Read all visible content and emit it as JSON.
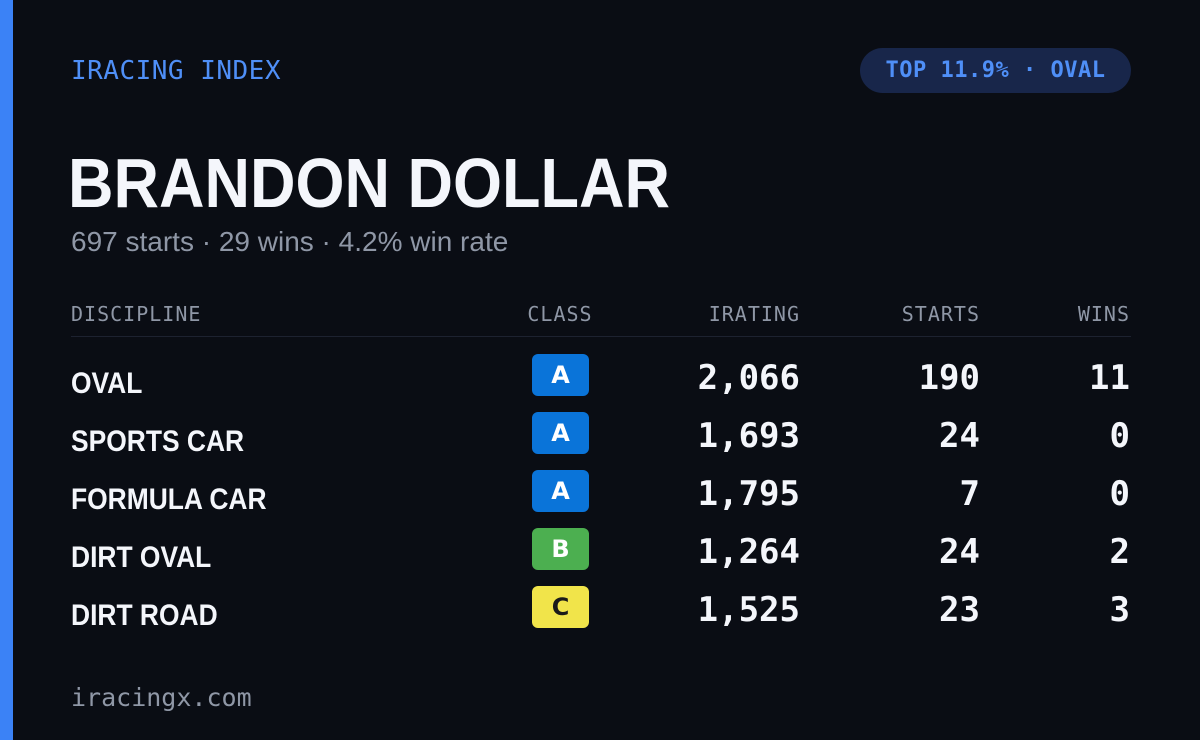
{
  "brand": "IRACING INDEX",
  "badge": "TOP 11.9% · OVAL",
  "driver": {
    "name": "BRANDON DOLLAR",
    "summary": "697 starts · 29 wins · 4.2% win rate"
  },
  "table": {
    "headers": {
      "discipline": "DISCIPLINE",
      "class": "CLASS",
      "irating": "IRATING",
      "starts": "STARTS",
      "wins": "WINS"
    },
    "rows": [
      {
        "discipline": "OVAL",
        "class": "A",
        "irating": "2,066",
        "starts": "190",
        "wins": "11"
      },
      {
        "discipline": "SPORTS CAR",
        "class": "A",
        "irating": "1,693",
        "starts": "24",
        "wins": "0"
      },
      {
        "discipline": "FORMULA CAR",
        "class": "A",
        "irating": "1,795",
        "starts": "7",
        "wins": "0"
      },
      {
        "discipline": "DIRT OVAL",
        "class": "B",
        "irating": "1,264",
        "starts": "24",
        "wins": "2"
      },
      {
        "discipline": "DIRT ROAD",
        "class": "C",
        "irating": "1,525",
        "starts": "23",
        "wins": "3"
      }
    ]
  },
  "class_colors": {
    "A": "#0a74d9",
    "B": "#4caf50",
    "C": "#f1e44a"
  },
  "accent_color": "#3b82f6",
  "footer": "iracingx.com"
}
